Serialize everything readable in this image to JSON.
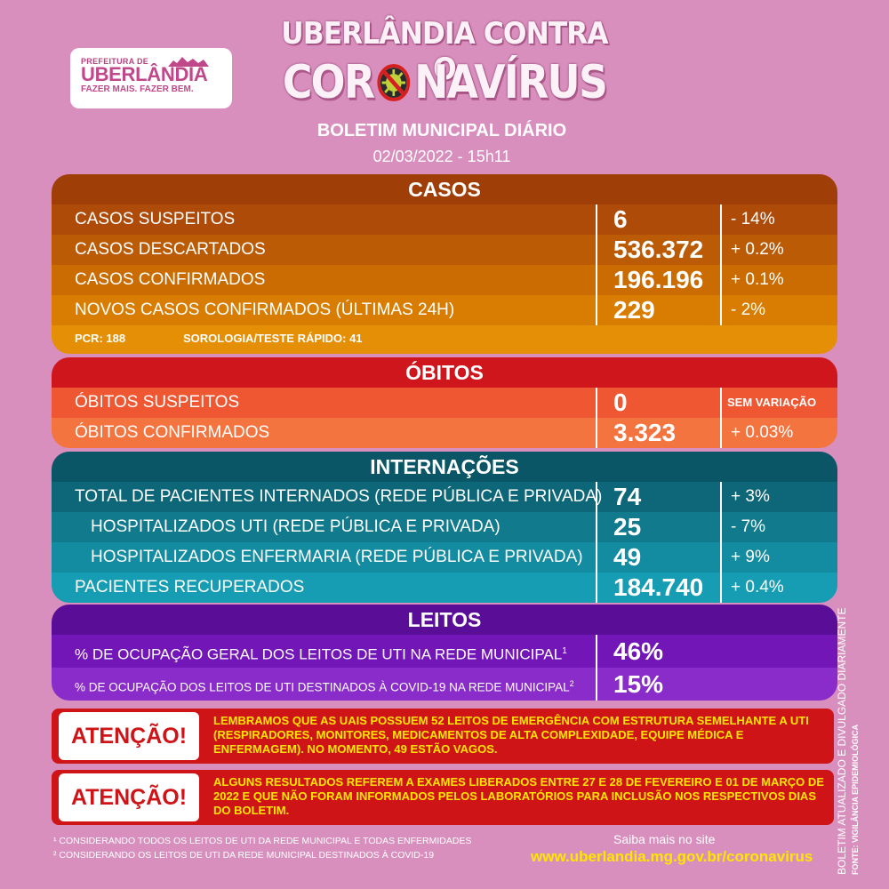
{
  "logo": {
    "line1": "PREFEITURA DE",
    "line2": "UBERLÂNDIA",
    "line3": "FAZER MAIS. FAZER BEM."
  },
  "header": {
    "title_line1": "UBERLÂNDIA CONTRA O",
    "title_line2_a": "COR",
    "title_line2_b": "NAVÍRUS",
    "subtitle": "BOLETIM MUNICIPAL DIÁRIO",
    "datetime": "02/03/2022 - 15h11"
  },
  "casos": {
    "heading": "CASOS",
    "rows": [
      {
        "label": "CASOS SUSPEITOS",
        "value": "6",
        "change": "- 14%"
      },
      {
        "label": "CASOS DESCARTADOS",
        "value": "536.372",
        "change": "+ 0.2%"
      },
      {
        "label": "CASOS CONFIRMADOS",
        "value": "196.196",
        "change": "+ 0.1%"
      },
      {
        "label": "NOVOS CASOS CONFIRMADOS (ÚLTIMAS 24H)",
        "value": "229",
        "change": "- 2%"
      }
    ],
    "pcr": "PCR: 188",
    "sorologia": "SOROLOGIA/TESTE RÁPIDO: 41"
  },
  "obitos": {
    "heading": "ÓBITOS",
    "rows": [
      {
        "label": "ÓBITOS SUSPEITOS",
        "value": "0",
        "change": "SEM VARIAÇÃO"
      },
      {
        "label": "ÓBITOS CONFIRMADOS",
        "value": "3.323",
        "change": "+ 0.03%"
      }
    ]
  },
  "internacoes": {
    "heading": "INTERNAÇÕES",
    "rows": [
      {
        "label": "TOTAL DE PACIENTES INTERNADOS (REDE PÚBLICA E PRIVADA)",
        "value": "74",
        "change": "+ 3%"
      },
      {
        "label": "HOSPITALIZADOS UTI (REDE PÚBLICA E PRIVADA)",
        "value": "25",
        "change": "- 7%"
      },
      {
        "label": "HOSPITALIZADOS ENFERMARIA (REDE PÚBLICA E PRIVADA)",
        "value": "49",
        "change": "+ 9%"
      },
      {
        "label": "PACIENTES RECUPERADOS",
        "value": "184.740",
        "change": "+ 0.4%"
      }
    ]
  },
  "leitos": {
    "heading": "LEITOS",
    "rows": [
      {
        "label": "% DE OCUPAÇÃO GERAL DOS LEITOS DE UTI NA REDE MUNICIPAL",
        "sup": "1",
        "value": "46%"
      },
      {
        "label": "% DE OCUPAÇÃO DOS LEITOS DE UTI DESTINADOS À COVID-19 NA REDE MUNICIPAL",
        "sup": "2",
        "value": "15%"
      }
    ]
  },
  "alerts": [
    {
      "badge": "ATENÇÃO!",
      "message": "LEMBRAMOS QUE AS UAIS POSSUEM 52 LEITOS DE EMERGÊNCIA COM ESTRUTURA SEMELHANTE A UTI (RESPIRADORES, MONITORES, MEDICAMENTOS DE ALTA COMPLEXIDADE, EQUIPE MÉDICA E ENFERMAGEM). NO MOMENTO, 49 ESTÃO VAGOS."
    },
    {
      "badge": "ATENÇÃO!",
      "message": "ALGUNS RESULTADOS REFEREM A EXAMES LIBERADOS ENTRE 27 E 28 DE FEVEREIRO E 01 DE MARÇO DE 2022 E QUE NÃO FORAM INFORMADOS PELOS LABORATÓRIOS PARA INCLUSÃO NOS RESPECTIVOS DIAS DO BOLETIM."
    }
  ],
  "footnotes": {
    "fn1": "¹ CONSIDERANDO TODOS OS LEITOS DE UTI DA REDE MUNICIPAL E TODAS ENFERMIDADES",
    "fn2": "² CONSIDERANDO OS LEITOS DE UTI DA REDE MUNICIPAL DESTINADOS À COVID-19",
    "saiba": "Saiba mais no site",
    "url": "www.uberlandia.mg.gov.br/coronavirus"
  },
  "side": {
    "line1": "BOLETIM ATUALIZADO  E DIVULGADO DIARIAMENTE",
    "line2": "FONTE: VIGILÂNCIA EPIDEMIOLÓGICA"
  },
  "colors": {
    "background": "#d98fbd",
    "casos_head": "#a03e07",
    "obitos_head": "#cf161c",
    "internacoes_head": "#0a5566",
    "leitos_head": "#5a0e98",
    "alert": "#cf1418",
    "alert_text": "#ffe600"
  },
  "icons": {
    "title_o": "virus-icon"
  }
}
